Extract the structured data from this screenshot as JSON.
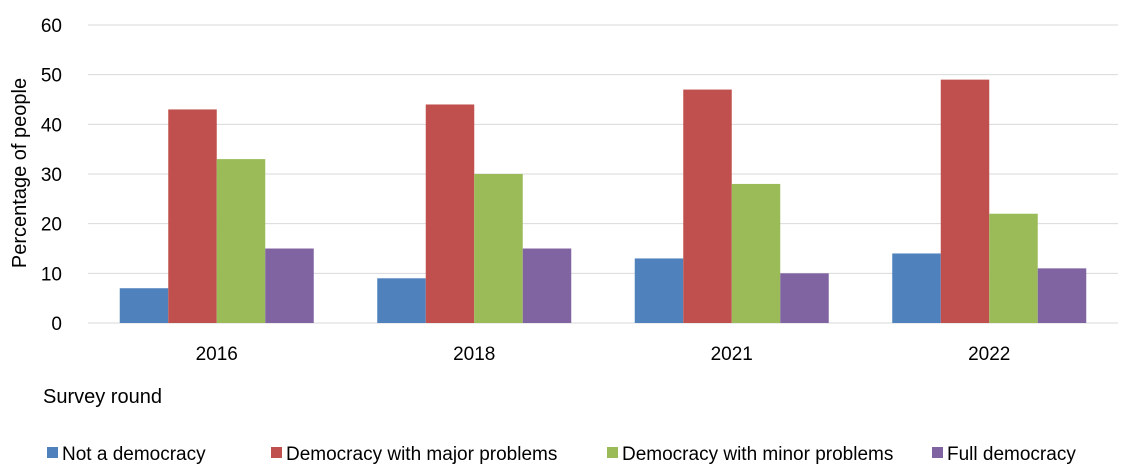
{
  "chart_data": {
    "type": "bar",
    "ylabel": "Percentage of people",
    "xlabel": "Survey round",
    "ylim": [
      0,
      60
    ],
    "yticks": [
      0,
      10,
      20,
      30,
      40,
      50,
      60
    ],
    "grid": true,
    "legend_position": "bottom",
    "categories": [
      "2016",
      "2018",
      "2021",
      "2022"
    ],
    "series": [
      {
        "name": "Not a democracy",
        "color": "#4f81bd",
        "values": [
          7,
          9,
          13,
          14
        ]
      },
      {
        "name": "Democracy with major problems",
        "color": "#c0504d",
        "values": [
          43,
          44,
          47,
          49
        ]
      },
      {
        "name": "Democracy with minor problems",
        "color": "#9bbb59",
        "values": [
          33,
          30,
          28,
          22
        ]
      },
      {
        "name": "Full democracy",
        "color": "#8064a2",
        "values": [
          15,
          15,
          10,
          11
        ]
      }
    ]
  }
}
